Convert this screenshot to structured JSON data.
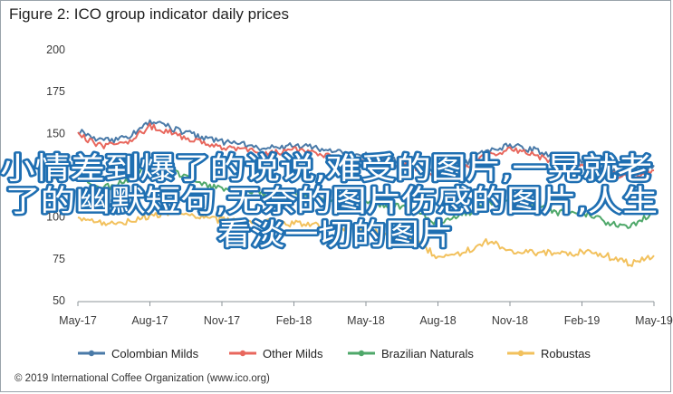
{
  "title": "Figure 2: ICO group indicator daily prices",
  "copyright": "© 2019 International Coffee Organization (www.ico.org)",
  "overlay_text": [
    "小情差到爆了的说说,难受的图片,一晃就老",
    "了的幽默短句,无奈的图片伤感的图片,人生",
    "看淡一切的图片"
  ],
  "chart_data": {
    "type": "line",
    "title": "",
    "xlabel": "",
    "ylabel": "",
    "ylim": [
      50,
      200
    ],
    "yticks": [
      50,
      75,
      100,
      125,
      150,
      175,
      200
    ],
    "xticks": [
      "May-17",
      "Aug-17",
      "Nov-17",
      "Feb-18",
      "May-18",
      "Aug-18",
      "Nov-18",
      "Feb-19",
      "May-19"
    ],
    "grid": false,
    "legend_position": "bottom",
    "x": [
      "May-17",
      "Jun-17",
      "Jul-17",
      "Aug-17",
      "Sep-17",
      "Oct-17",
      "Nov-17",
      "Dec-17",
      "Jan-18",
      "Feb-18",
      "Mar-18",
      "Apr-18",
      "May-18",
      "Jun-18",
      "Jul-18",
      "Aug-18",
      "Sep-18",
      "Oct-18",
      "Nov-18",
      "Dec-18",
      "Jan-19",
      "Feb-19",
      "Mar-19",
      "Apr-19",
      "May-19"
    ],
    "series": [
      {
        "name": "Colombian Milds",
        "color": "#4a7aa8",
        "values": [
          152,
          146,
          147,
          157,
          153,
          148,
          145,
          143,
          141,
          143,
          141,
          138,
          137,
          135,
          133,
          125,
          131,
          139,
          143,
          140,
          135,
          134,
          128,
          126,
          131
        ]
      },
      {
        "name": "Other Milds",
        "color": "#e8675d",
        "values": [
          149,
          142,
          145,
          154,
          150,
          145,
          141,
          140,
          138,
          140,
          138,
          135,
          134,
          132,
          130,
          124,
          128,
          137,
          140,
          137,
          133,
          132,
          126,
          124,
          128
        ]
      },
      {
        "name": "Brazilian Naturals",
        "color": "#4fa86a",
        "values": [
          124,
          117,
          121,
          132,
          127,
          120,
          117,
          116,
          113,
          114,
          112,
          110,
          109,
          107,
          104,
          96,
          101,
          107,
          110,
          107,
          103,
          103,
          97,
          94,
          103
        ]
      },
      {
        "name": "Robustas",
        "color": "#f2c15d",
        "values": [
          100,
          96,
          97,
          101,
          103,
          100,
          98,
          97,
          97,
          96,
          95,
          94,
          92,
          90,
          87,
          76,
          78,
          86,
          80,
          79,
          78,
          79,
          77,
          72,
          77
        ]
      }
    ]
  }
}
